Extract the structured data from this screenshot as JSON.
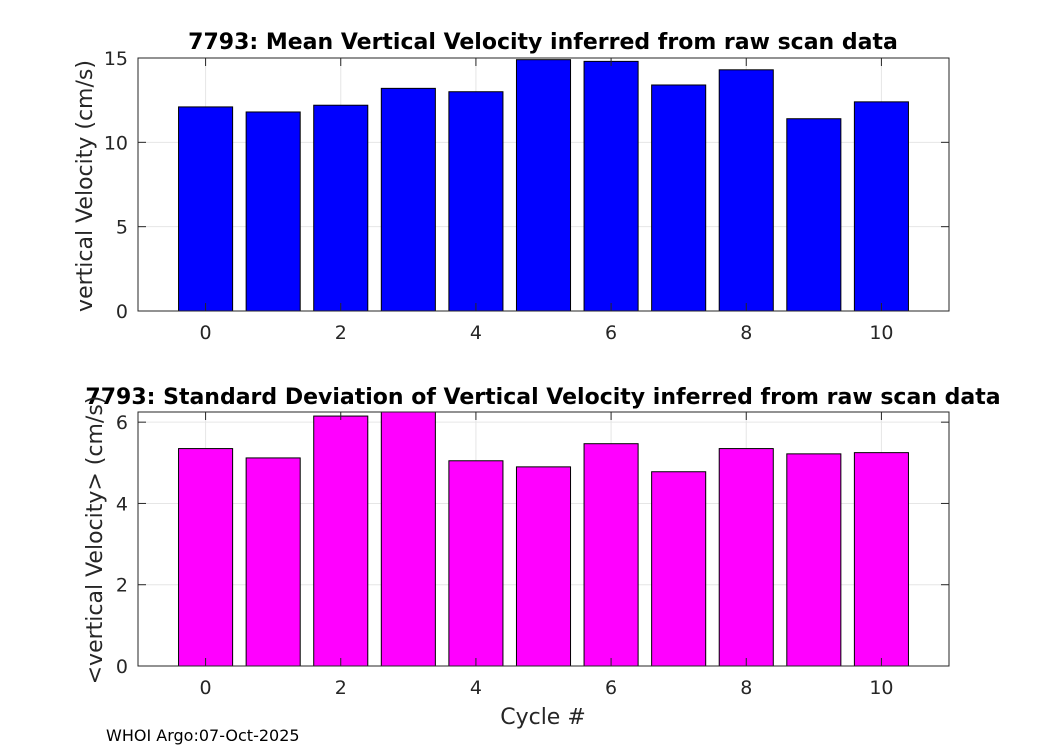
{
  "footer": "WHOI Argo:07-Oct-2025",
  "chart_data": [
    {
      "type": "bar",
      "title": "7793: Mean Vertical Velocity inferred from raw scan data",
      "xlabel": "",
      "ylabel": "vertical Velocity (cm/s)",
      "x": [
        0,
        1,
        2,
        3,
        4,
        5,
        6,
        7,
        8,
        9,
        10
      ],
      "values": [
        12.1,
        11.8,
        12.2,
        13.2,
        13.0,
        14.9,
        14.8,
        13.4,
        14.3,
        11.4,
        12.4
      ],
      "xlim": [
        -1,
        11
      ],
      "ylim": [
        0,
        15
      ],
      "xticks": [
        0,
        2,
        4,
        6,
        8,
        10
      ],
      "yticks": [
        0,
        5,
        10,
        15
      ],
      "grid": true,
      "color": "#0000ff"
    },
    {
      "type": "bar",
      "title": "7793: Standard Deviation of Vertical Velocity inferred from raw scan data",
      "xlabel": "Cycle #",
      "ylabel": "<vertical Velocity> (cm/s)",
      "x": [
        0,
        1,
        2,
        3,
        4,
        5,
        6,
        7,
        8,
        9,
        10
      ],
      "values": [
        5.35,
        5.12,
        6.15,
        6.35,
        5.05,
        4.9,
        5.47,
        4.78,
        5.35,
        5.22,
        5.25
      ],
      "xlim": [
        -1,
        11
      ],
      "ylim": [
        0,
        6.25
      ],
      "xticks": [
        0,
        2,
        4,
        6,
        8,
        10
      ],
      "yticks": [
        0,
        2,
        4,
        6
      ],
      "grid": true,
      "color": "#ff00ff"
    }
  ]
}
